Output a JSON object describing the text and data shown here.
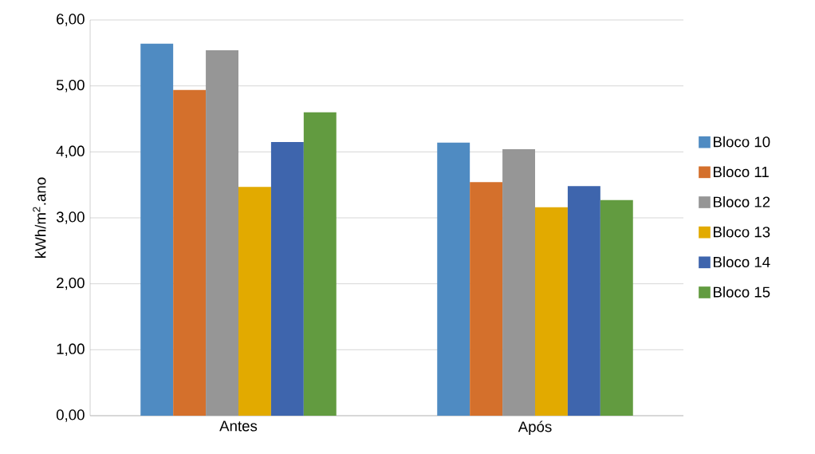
{
  "chart_data": {
    "type": "bar",
    "ylabel": "kWh/m$^{2}$.ano",
    "categories": [
      "Antes",
      "Após"
    ],
    "series": [
      {
        "name": "Bloco 10",
        "color": "#4f8bc2",
        "values": [
          5.64,
          4.14
        ]
      },
      {
        "name": "Bloco 11",
        "color": "#d4702c",
        "values": [
          4.94,
          3.54
        ]
      },
      {
        "name": "Bloco 12",
        "color": "#969696",
        "values": [
          5.54,
          4.04
        ]
      },
      {
        "name": "Bloco 13",
        "color": "#e2aa00",
        "values": [
          3.47,
          3.16
        ]
      },
      {
        "name": "Bloco 14",
        "color": "#3e65ad",
        "values": [
          4.15,
          3.48
        ]
      },
      {
        "name": "Bloco 15",
        "color": "#629b40",
        "values": [
          4.6,
          3.27
        ]
      }
    ],
    "ylim": [
      0,
      6
    ],
    "yticks": [
      {
        "value": 0,
        "label": "0,00"
      },
      {
        "value": 1,
        "label": "1,00"
      },
      {
        "value": 2,
        "label": "2,00"
      },
      {
        "value": 3,
        "label": "3,00"
      },
      {
        "value": 4,
        "label": "4,00"
      },
      {
        "value": 5,
        "label": "5,00"
      },
      {
        "value": 6,
        "label": "6,00"
      }
    ],
    "grid": "y",
    "legend": "right"
  }
}
